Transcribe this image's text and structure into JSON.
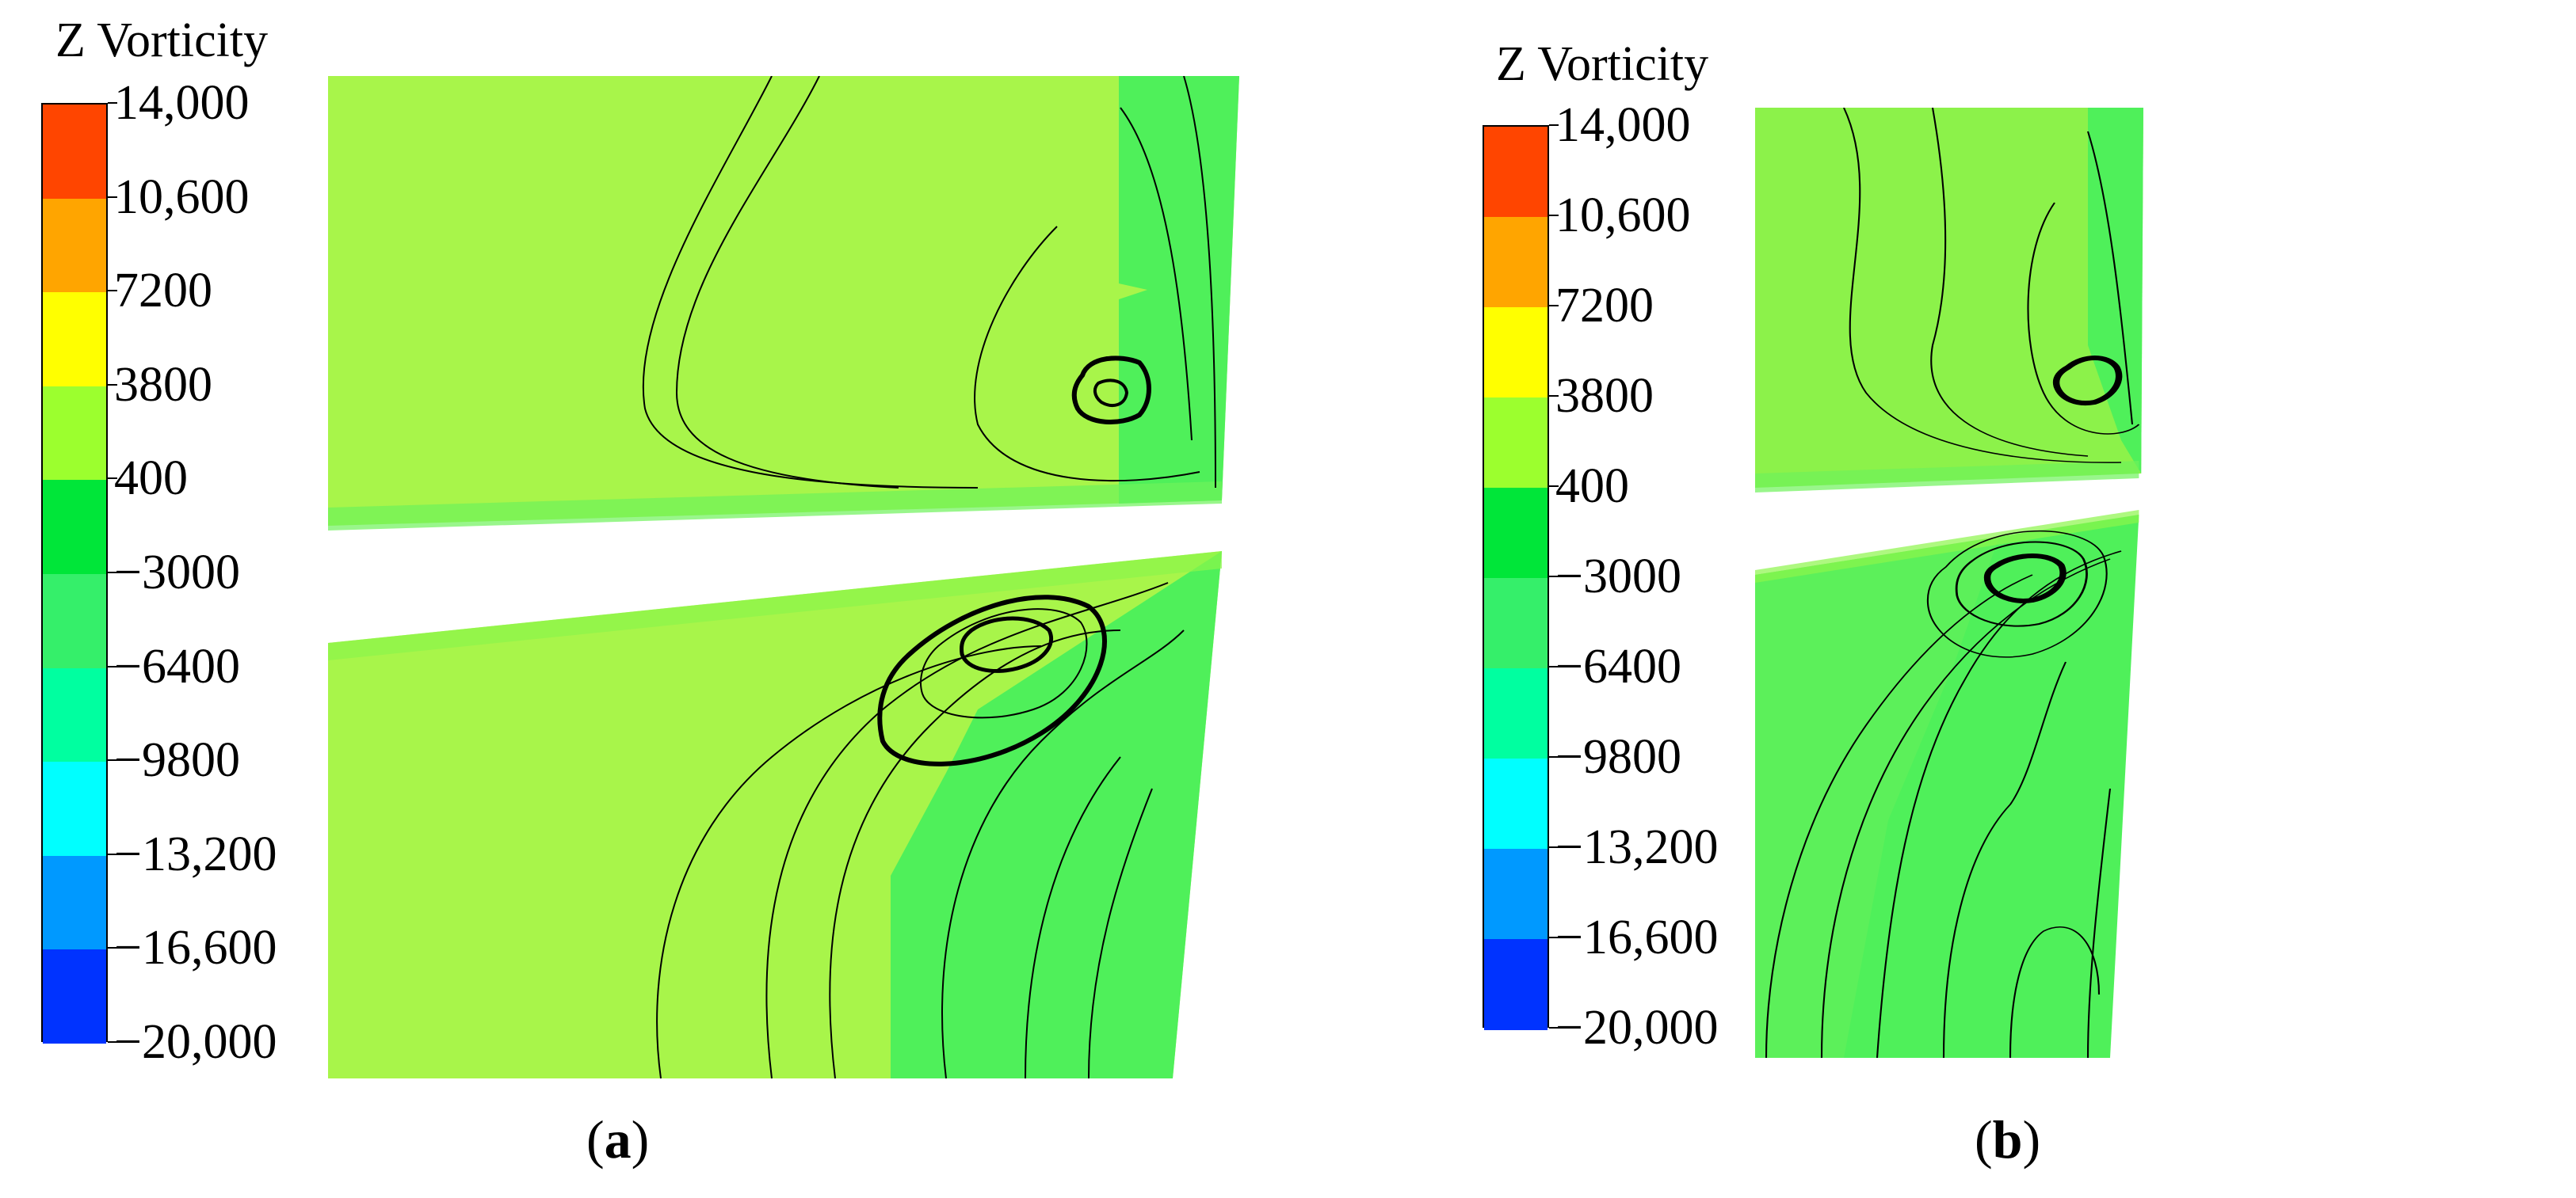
{
  "chart_data": [
    {
      "type": "heatmap",
      "panel_label": "a",
      "legend_title": "Z Vorticity",
      "colorbar": {
        "min": -20000,
        "max": 14000,
        "tick_labels": [
          "14,000",
          "10,600",
          "7200",
          "3800",
          "400",
          "−3000",
          "−6400",
          "−9800",
          "−13,200",
          "−16,600",
          "−20,000"
        ],
        "tick_values": [
          14000,
          10600,
          7200,
          3800,
          400,
          -3000,
          -6400,
          -9800,
          -13200,
          -16600,
          -20000
        ],
        "band_colors": [
          "#ff4500",
          "#ffa500",
          "#ffff00",
          "#9cff2e",
          "#00e639",
          "#35ef6a",
          "#00ffa0",
          "#00ffff",
          "#0099ff",
          "#0033ff"
        ]
      }
    },
    {
      "type": "heatmap",
      "panel_label": "b",
      "legend_title": "Z Vorticity",
      "colorbar": {
        "min": -20000,
        "max": 14000,
        "tick_labels": [
          "14,000",
          "10,600",
          "7200",
          "3800",
          "400",
          "−3000",
          "−6400",
          "−9800",
          "−13,200",
          "−16,600",
          "−20,000"
        ],
        "tick_values": [
          14000,
          10600,
          7200,
          3800,
          400,
          -3000,
          -6400,
          -9800,
          -13200,
          -16600,
          -20000
        ],
        "band_colors": [
          "#ff4500",
          "#ffa500",
          "#ffff00",
          "#9cff2e",
          "#00e639",
          "#35ef6a",
          "#00ffa0",
          "#00ffff",
          "#0099ff",
          "#0033ff"
        ]
      }
    }
  ],
  "colors": {
    "field_light_green": "#a8f54a",
    "field_mid_green": "#8cf24a",
    "field_green": "#4ff05a",
    "field_dark_green": "#36ee54",
    "streamline": "#000000"
  }
}
